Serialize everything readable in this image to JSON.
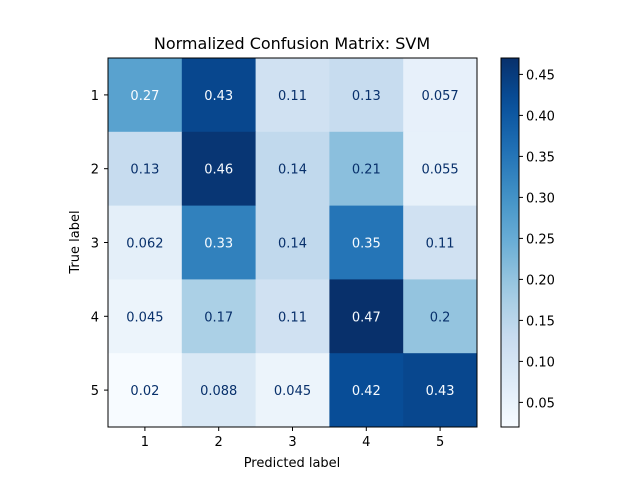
{
  "chart_data": {
    "type": "heatmap",
    "title": "Normalized Confusion Matrix: SVM",
    "xlabel": "Predicted label",
    "ylabel": "True label",
    "x_categories": [
      "1",
      "2",
      "3",
      "4",
      "5"
    ],
    "y_categories": [
      "1",
      "2",
      "3",
      "4",
      "5"
    ],
    "values": [
      [
        0.27,
        0.43,
        0.11,
        0.13,
        0.057
      ],
      [
        0.13,
        0.46,
        0.14,
        0.21,
        0.055
      ],
      [
        0.062,
        0.33,
        0.14,
        0.35,
        0.11
      ],
      [
        0.045,
        0.17,
        0.11,
        0.47,
        0.2
      ],
      [
        0.02,
        0.088,
        0.045,
        0.42,
        0.43
      ]
    ],
    "cell_labels": [
      [
        "0.27",
        "0.43",
        "0.11",
        "0.13",
        "0.057"
      ],
      [
        "0.13",
        "0.46",
        "0.14",
        "0.21",
        "0.055"
      ],
      [
        "0.062",
        "0.33",
        "0.14",
        "0.35",
        "0.11"
      ],
      [
        "0.045",
        "0.17",
        "0.11",
        "0.47",
        "0.2"
      ],
      [
        "0.02",
        "0.088",
        "0.045",
        "0.42",
        "0.43"
      ]
    ],
    "colormap": "Blues",
    "colorbar": {
      "range": [
        0.02,
        0.47
      ],
      "ticks": [
        0.05,
        0.1,
        0.15,
        0.2,
        0.25,
        0.3,
        0.35,
        0.4,
        0.45
      ],
      "tick_labels": [
        "0.05",
        "0.10",
        "0.15",
        "0.20",
        "0.25",
        "0.30",
        "0.35",
        "0.40",
        "0.45"
      ]
    },
    "grid": false
  }
}
